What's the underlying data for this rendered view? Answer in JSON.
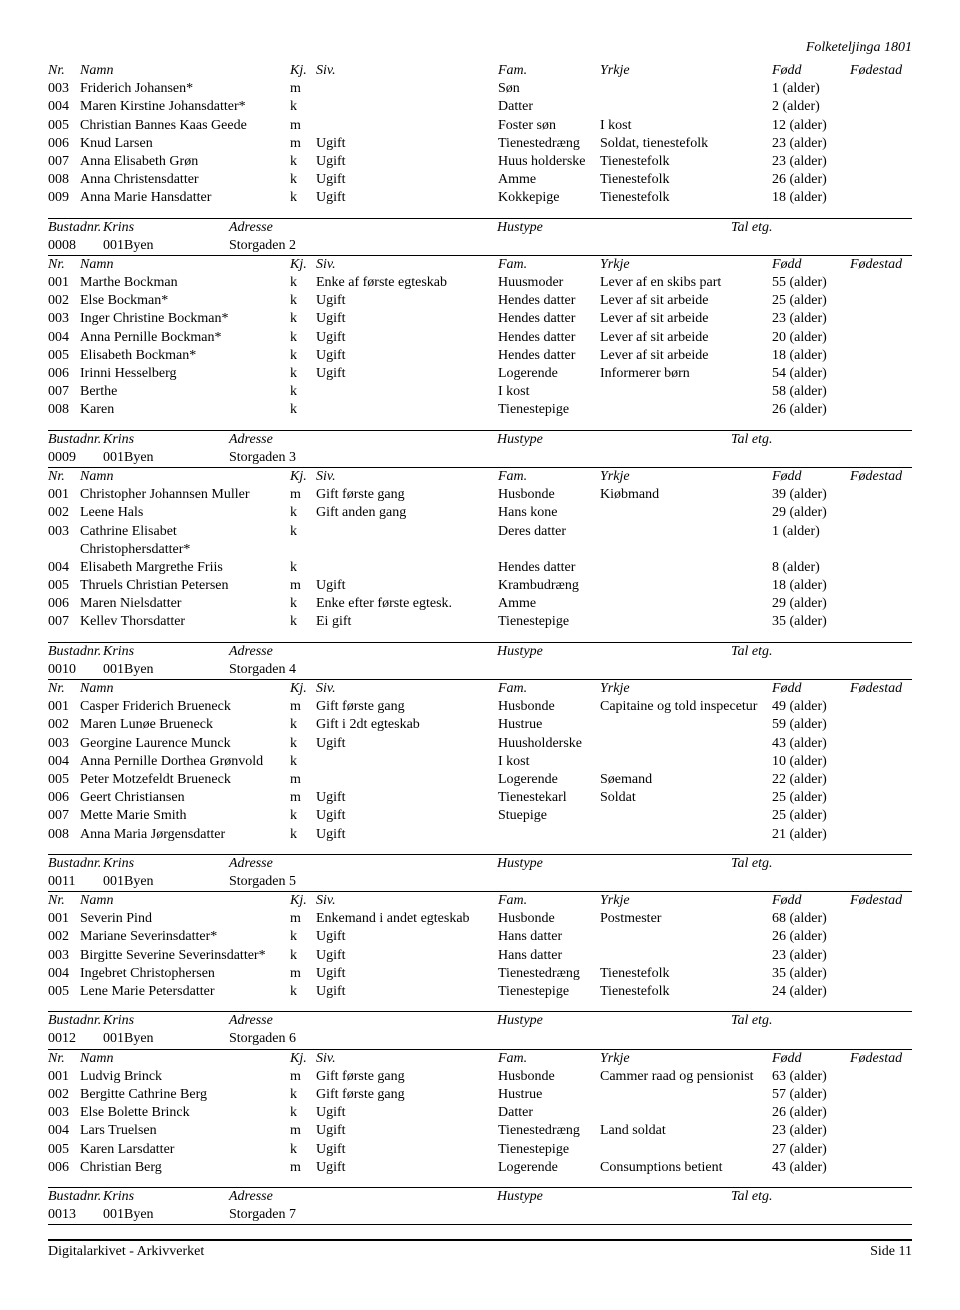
{
  "header": "Folketeljinga 1801",
  "cols": {
    "nr": "Nr.",
    "namn": "Namn",
    "kj": "Kj.",
    "siv": "Siv.",
    "fam": "Fam.",
    "yrkje": "Yrkje",
    "fodd": "Fødd",
    "fode": "Fødestad"
  },
  "bcols": {
    "bustadnr": "Bustadnr.",
    "krins": "Krins",
    "adresse": "Adresse",
    "hustype": "Hustype",
    "taletg": "Tal etg."
  },
  "topRows": [
    {
      "nr": "003",
      "namn": "Friderich Johansen*",
      "kj": "m",
      "siv": "",
      "fam": "Søn",
      "yrkje": "",
      "fodd": "1 (alder)"
    },
    {
      "nr": "004",
      "namn": "Maren Kirstine Johansdatter*",
      "kj": "k",
      "siv": "",
      "fam": "Datter",
      "yrkje": "",
      "fodd": "2 (alder)"
    },
    {
      "nr": "005",
      "namn": "Christian Bannes Kaas Geede",
      "kj": "m",
      "siv": "",
      "fam": "Foster søn",
      "yrkje": "I kost",
      "fodd": "12 (alder)"
    },
    {
      "nr": "006",
      "namn": "Knud Larsen",
      "kj": "m",
      "siv": "Ugift",
      "fam": "Tienestedræng",
      "yrkje": "Soldat, tienestefolk",
      "fodd": "23 (alder)"
    },
    {
      "nr": "007",
      "namn": "Anna Elisabeth Grøn",
      "kj": "k",
      "siv": "Ugift",
      "fam": "Huus holderske",
      "yrkje": "Tienestefolk",
      "fodd": "23 (alder)"
    },
    {
      "nr": "008",
      "namn": "Anna Christensdatter",
      "kj": "k",
      "siv": "Ugift",
      "fam": "Amme",
      "yrkje": "Tienestefolk",
      "fodd": "26 (alder)"
    },
    {
      "nr": "009",
      "namn": "Anna Marie Hansdatter",
      "kj": "k",
      "siv": "Ugift",
      "fam": "Kokkepige",
      "yrkje": "Tienestefolk",
      "fodd": "18 (alder)"
    }
  ],
  "sections": [
    {
      "b": {
        "nr": "0008",
        "krins": "001Byen",
        "adresse": "Storgaden 2"
      },
      "rows": [
        {
          "nr": "001",
          "namn": "Marthe Bockman",
          "kj": "k",
          "siv": "Enke af første egteskab",
          "fam": "Huusmoder",
          "yrkje": "Lever af en skibs part",
          "fodd": "55 (alder)"
        },
        {
          "nr": "002",
          "namn": "Else Bockman*",
          "kj": "k",
          "siv": "Ugift",
          "fam": "Hendes datter",
          "yrkje": "Lever af sit arbeide",
          "fodd": "25 (alder)"
        },
        {
          "nr": "003",
          "namn": "Inger Christine Bockman*",
          "kj": "k",
          "siv": "Ugift",
          "fam": "Hendes datter",
          "yrkje": "Lever af sit arbeide",
          "fodd": "23 (alder)"
        },
        {
          "nr": "004",
          "namn": "Anna Pernille Bockman*",
          "kj": "k",
          "siv": "Ugift",
          "fam": "Hendes datter",
          "yrkje": "Lever af sit arbeide",
          "fodd": "20 (alder)"
        },
        {
          "nr": "005",
          "namn": "Elisabeth Bockman*",
          "kj": "k",
          "siv": "Ugift",
          "fam": "Hendes datter",
          "yrkje": "Lever af sit arbeide",
          "fodd": "18 (alder)"
        },
        {
          "nr": "006",
          "namn": "Irinni Hesselberg",
          "kj": "k",
          "siv": "Ugift",
          "fam": "Logerende",
          "yrkje": "Informerer børn",
          "fodd": "54 (alder)"
        },
        {
          "nr": "007",
          "namn": "Berthe",
          "kj": "k",
          "siv": "",
          "fam": "I kost",
          "yrkje": "",
          "fodd": "58 (alder)"
        },
        {
          "nr": "008",
          "namn": "Karen",
          "kj": "k",
          "siv": "",
          "fam": "Tienestepige",
          "yrkje": "",
          "fodd": "26 (alder)"
        }
      ]
    },
    {
      "b": {
        "nr": "0009",
        "krins": "001Byen",
        "adresse": "Storgaden 3"
      },
      "rows": [
        {
          "nr": "001",
          "namn": "Christopher Johannsen Muller",
          "kj": "m",
          "siv": "Gift første gang",
          "fam": "Husbonde",
          "yrkje": "Kiøbmand",
          "fodd": "39 (alder)"
        },
        {
          "nr": "002",
          "namn": "Leene Hals",
          "kj": "k",
          "siv": "Gift anden gang",
          "fam": "Hans kone",
          "yrkje": "",
          "fodd": "29 (alder)"
        },
        {
          "nr": "003",
          "namn": "Cathrine Elisabet Christophersdatter*",
          "kj": "k",
          "siv": "",
          "fam": "Deres datter",
          "yrkje": "",
          "fodd": "1 (alder)"
        },
        {
          "nr": "004",
          "namn": "Elisabeth Margrethe Friis",
          "kj": "k",
          "siv": "",
          "fam": "Hendes datter",
          "yrkje": "",
          "fodd": "8 (alder)"
        },
        {
          "nr": "005",
          "namn": "Thruels Christian Petersen",
          "kj": "m",
          "siv": "Ugift",
          "fam": "Krambudræng",
          "yrkje": "",
          "fodd": "18 (alder)"
        },
        {
          "nr": "006",
          "namn": "Maren Nielsdatter",
          "kj": "k",
          "siv": "Enke efter første egtesk.",
          "fam": "Amme",
          "yrkje": "",
          "fodd": "29 (alder)"
        },
        {
          "nr": "007",
          "namn": "Kellev Thorsdatter",
          "kj": "k",
          "siv": "Ei gift",
          "fam": "Tienestepige",
          "yrkje": "",
          "fodd": "35 (alder)"
        }
      ]
    },
    {
      "b": {
        "nr": "0010",
        "krins": "001Byen",
        "adresse": "Storgaden 4"
      },
      "rows": [
        {
          "nr": "001",
          "namn": "Casper Friderich Brueneck",
          "kj": "m",
          "siv": "Gift første gang",
          "fam": "Husbonde",
          "yrkje": "Capitaine og told inspecetur",
          "fodd": "49 (alder)"
        },
        {
          "nr": "002",
          "namn": "Maren Lunøe Brueneck",
          "kj": "k",
          "siv": "Gift i 2dt egteskab",
          "fam": "Hustrue",
          "yrkje": "",
          "fodd": "59 (alder)"
        },
        {
          "nr": "003",
          "namn": "Georgine Laurence Munck",
          "kj": "k",
          "siv": "Ugift",
          "fam": "Huusholderske",
          "yrkje": "",
          "fodd": "43 (alder)"
        },
        {
          "nr": "004",
          "namn": "Anna Pernille Dorthea Grønvold",
          "kj": "k",
          "siv": "",
          "fam": "I kost",
          "yrkje": "",
          "fodd": "10 (alder)"
        },
        {
          "nr": "005",
          "namn": "Peter Motzefeldt Brueneck",
          "kj": "m",
          "siv": "",
          "fam": "Logerende",
          "yrkje": "Søemand",
          "fodd": "22 (alder)"
        },
        {
          "nr": "006",
          "namn": "Geert Christiansen",
          "kj": "m",
          "siv": "Ugift",
          "fam": "Tienestekarl",
          "yrkje": "Soldat",
          "fodd": "25 (alder)"
        },
        {
          "nr": "007",
          "namn": "Mette Marie Smith",
          "kj": "k",
          "siv": "Ugift",
          "fam": "Stuepige",
          "yrkje": "",
          "fodd": "25 (alder)"
        },
        {
          "nr": "008",
          "namn": "Anna Maria Jørgensdatter",
          "kj": "k",
          "siv": "Ugift",
          "fam": "",
          "yrkje": "",
          "fodd": "21 (alder)"
        }
      ]
    },
    {
      "b": {
        "nr": "0011",
        "krins": "001Byen",
        "adresse": "Storgaden 5"
      },
      "rows": [
        {
          "nr": "001",
          "namn": "Severin Pind",
          "kj": "m",
          "siv": "Enkemand i andet egteskab",
          "fam": "Husbonde",
          "yrkje": "Postmester",
          "fodd": "68 (alder)"
        },
        {
          "nr": "002",
          "namn": "Mariane Severinsdatter*",
          "kj": "k",
          "siv": "Ugift",
          "fam": "Hans datter",
          "yrkje": "",
          "fodd": "26 (alder)"
        },
        {
          "nr": "003",
          "namn": "Birgitte Severine Severinsdatter*",
          "kj": "k",
          "siv": "Ugift",
          "fam": "Hans datter",
          "yrkje": "",
          "fodd": "23 (alder)"
        },
        {
          "nr": "004",
          "namn": "Ingebret Christophersen",
          "kj": "m",
          "siv": "Ugift",
          "fam": "Tienestedræng",
          "yrkje": "Tienestefolk",
          "fodd": "35 (alder)"
        },
        {
          "nr": "005",
          "namn": "Lene Marie Petersdatter",
          "kj": "k",
          "siv": "Ugift",
          "fam": "Tienestepige",
          "yrkje": "Tienestefolk",
          "fodd": "24 (alder)"
        }
      ]
    },
    {
      "b": {
        "nr": "0012",
        "krins": "001Byen",
        "adresse": "Storgaden 6"
      },
      "rows": [
        {
          "nr": "001",
          "namn": "Ludvig Brinck",
          "kj": "m",
          "siv": "Gift første gang",
          "fam": "Husbonde",
          "yrkje": "Cammer raad og pensionist",
          "fodd": "63 (alder)"
        },
        {
          "nr": "002",
          "namn": "Bergitte Cathrine Berg",
          "kj": "k",
          "siv": "Gift første gang",
          "fam": "Hustrue",
          "yrkje": "",
          "fodd": "57 (alder)"
        },
        {
          "nr": "003",
          "namn": "Else Bolette Brinck",
          "kj": "k",
          "siv": "Ugift",
          "fam": "Datter",
          "yrkje": "",
          "fodd": "26 (alder)"
        },
        {
          "nr": "004",
          "namn": "Lars Truelsen",
          "kj": "m",
          "siv": "Ugift",
          "fam": "Tienestedræng",
          "yrkje": "Land soldat",
          "fodd": "23 (alder)"
        },
        {
          "nr": "005",
          "namn": "Karen Larsdatter",
          "kj": "k",
          "siv": "Ugift",
          "fam": "Tienestepige",
          "yrkje": "",
          "fodd": "27 (alder)"
        },
        {
          "nr": "006",
          "namn": "Christian Berg",
          "kj": "m",
          "siv": "Ugift",
          "fam": "Logerende",
          "yrkje": "Consumptions betient",
          "fodd": "43 (alder)"
        }
      ]
    }
  ],
  "lastB": {
    "nr": "0013",
    "krins": "001Byen",
    "adresse": "Storgaden 7"
  },
  "footer": {
    "left": "Digitalarkivet - Arkivverket",
    "right": "Side 11"
  }
}
